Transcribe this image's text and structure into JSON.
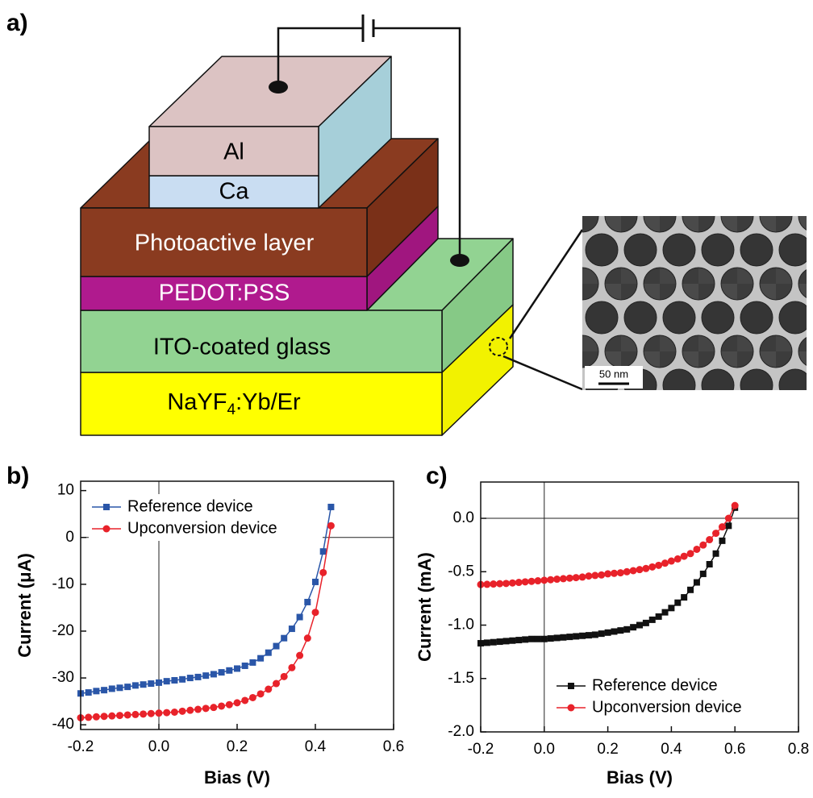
{
  "panel_labels": [
    "a)",
    "b)",
    "c)"
  ],
  "diagram": {
    "layers": [
      "Al",
      "Ca",
      "Photoactive layer",
      "PEDOT:PSS",
      "ITO-coated glass"
    ],
    "substrate": [
      "NaYF",
      "4",
      ":Yb/Er"
    ],
    "scale_bar": "50 nm"
  },
  "chart_data": [
    {
      "type": "line",
      "x_label": "Bias (V)",
      "y_label": "Current (μA)",
      "legend": "upper left",
      "zero_lines": true,
      "xlim": [
        -0.2,
        0.6
      ],
      "xticks": [
        -0.2,
        {
          "value": 0,
          "label": "0.0"
        },
        0.2,
        0.4,
        0.6
      ],
      "ylim": [
        -41,
        12
      ],
      "yticks": [
        -40,
        -30,
        -20,
        -10,
        0,
        10
      ],
      "x": [
        -0.2,
        -0.18,
        -0.16,
        -0.14,
        -0.12,
        -0.1,
        -0.08,
        -0.06,
        -0.04,
        -0.02,
        0,
        0.02,
        0.04,
        0.06,
        0.08,
        0.1,
        0.12,
        0.14,
        0.16,
        0.18,
        0.2,
        0.22,
        0.24,
        0.26,
        0.28,
        0.3,
        0.32,
        0.34,
        0.36,
        0.38,
        0.4,
        0.42,
        0.44
      ],
      "series": [
        {
          "name": "Reference device",
          "color": "#2a56a8",
          "marker": "square",
          "values": [
            -33.3,
            -33.1,
            -32.8,
            -32.6,
            -32.3,
            -32.1,
            -31.9,
            -31.6,
            -31.4,
            -31.2,
            -31.0,
            -30.7,
            -30.5,
            -30.3,
            -30.0,
            -29.8,
            -29.5,
            -29.2,
            -28.8,
            -28.4,
            -28.0,
            -27.4,
            -26.7,
            -25.8,
            -24.6,
            -23.2,
            -21.5,
            -19.5,
            -17.0,
            -13.8,
            -9.5,
            -3.0,
            6.5
          ]
        },
        {
          "name": "Upconversion device",
          "color": "#e8222a",
          "marker": "circle",
          "values": [
            -38.5,
            -38.4,
            -38.3,
            -38.2,
            -38.1,
            -38.0,
            -37.9,
            -37.8,
            -37.7,
            -37.6,
            -37.5,
            -37.4,
            -37.3,
            -37.1,
            -36.9,
            -36.7,
            -36.5,
            -36.3,
            -36.0,
            -35.7,
            -35.3,
            -34.8,
            -34.2,
            -33.4,
            -32.4,
            -31.2,
            -29.7,
            -27.8,
            -25.2,
            -21.5,
            -16.0,
            -7.5,
            2.5
          ]
        }
      ]
    },
    {
      "type": "line",
      "x_label": "Bias (V)",
      "y_label": "Current (mA)",
      "legend": "lower right",
      "zero_lines": true,
      "xlim": [
        -0.2,
        0.8
      ],
      "xticks": [
        -0.2,
        {
          "value": 0,
          "label": "0.0"
        },
        0.2,
        0.4,
        0.6,
        0.8
      ],
      "ylim": [
        -2.0,
        0.34
      ],
      "yticks": [
        {
          "value": -2,
          "label": "-2.0"
        },
        -1.5,
        {
          "value": -1,
          "label": "-1.0"
        },
        -0.5,
        {
          "value": 0,
          "label": "0.0"
        }
      ],
      "x": [
        -0.2,
        -0.18,
        -0.16,
        -0.14,
        -0.12,
        -0.1,
        -0.08,
        -0.06,
        -0.04,
        -0.02,
        0,
        0.02,
        0.04,
        0.06,
        0.08,
        0.1,
        0.12,
        0.14,
        0.16,
        0.18,
        0.2,
        0.22,
        0.24,
        0.26,
        0.28,
        0.3,
        0.32,
        0.34,
        0.36,
        0.38,
        0.4,
        0.42,
        0.44,
        0.46,
        0.48,
        0.5,
        0.52,
        0.54,
        0.56,
        0.58,
        0.6
      ],
      "series": [
        {
          "name": "Reference device",
          "color": "#111111",
          "marker": "square",
          "values": [
            -1.17,
            -1.165,
            -1.16,
            -1.155,
            -1.15,
            -1.145,
            -1.14,
            -1.135,
            -1.13,
            -1.13,
            -1.13,
            -1.125,
            -1.12,
            -1.115,
            -1.11,
            -1.105,
            -1.1,
            -1.095,
            -1.09,
            -1.08,
            -1.07,
            -1.06,
            -1.05,
            -1.04,
            -1.02,
            -1.0,
            -0.98,
            -0.95,
            -0.92,
            -0.88,
            -0.84,
            -0.79,
            -0.74,
            -0.67,
            -0.6,
            -0.52,
            -0.43,
            -0.33,
            -0.21,
            -0.07,
            0.1
          ]
        },
        {
          "name": "Upconversion device",
          "color": "#e8222a",
          "marker": "circle",
          "values": [
            -0.62,
            -0.618,
            -0.615,
            -0.612,
            -0.61,
            -0.605,
            -0.6,
            -0.595,
            -0.59,
            -0.585,
            -0.58,
            -0.575,
            -0.57,
            -0.565,
            -0.56,
            -0.555,
            -0.55,
            -0.54,
            -0.535,
            -0.53,
            -0.52,
            -0.515,
            -0.51,
            -0.5,
            -0.49,
            -0.48,
            -0.47,
            -0.455,
            -0.44,
            -0.42,
            -0.4,
            -0.38,
            -0.355,
            -0.33,
            -0.29,
            -0.25,
            -0.2,
            -0.14,
            -0.08,
            0.0,
            0.12
          ]
        }
      ]
    }
  ]
}
